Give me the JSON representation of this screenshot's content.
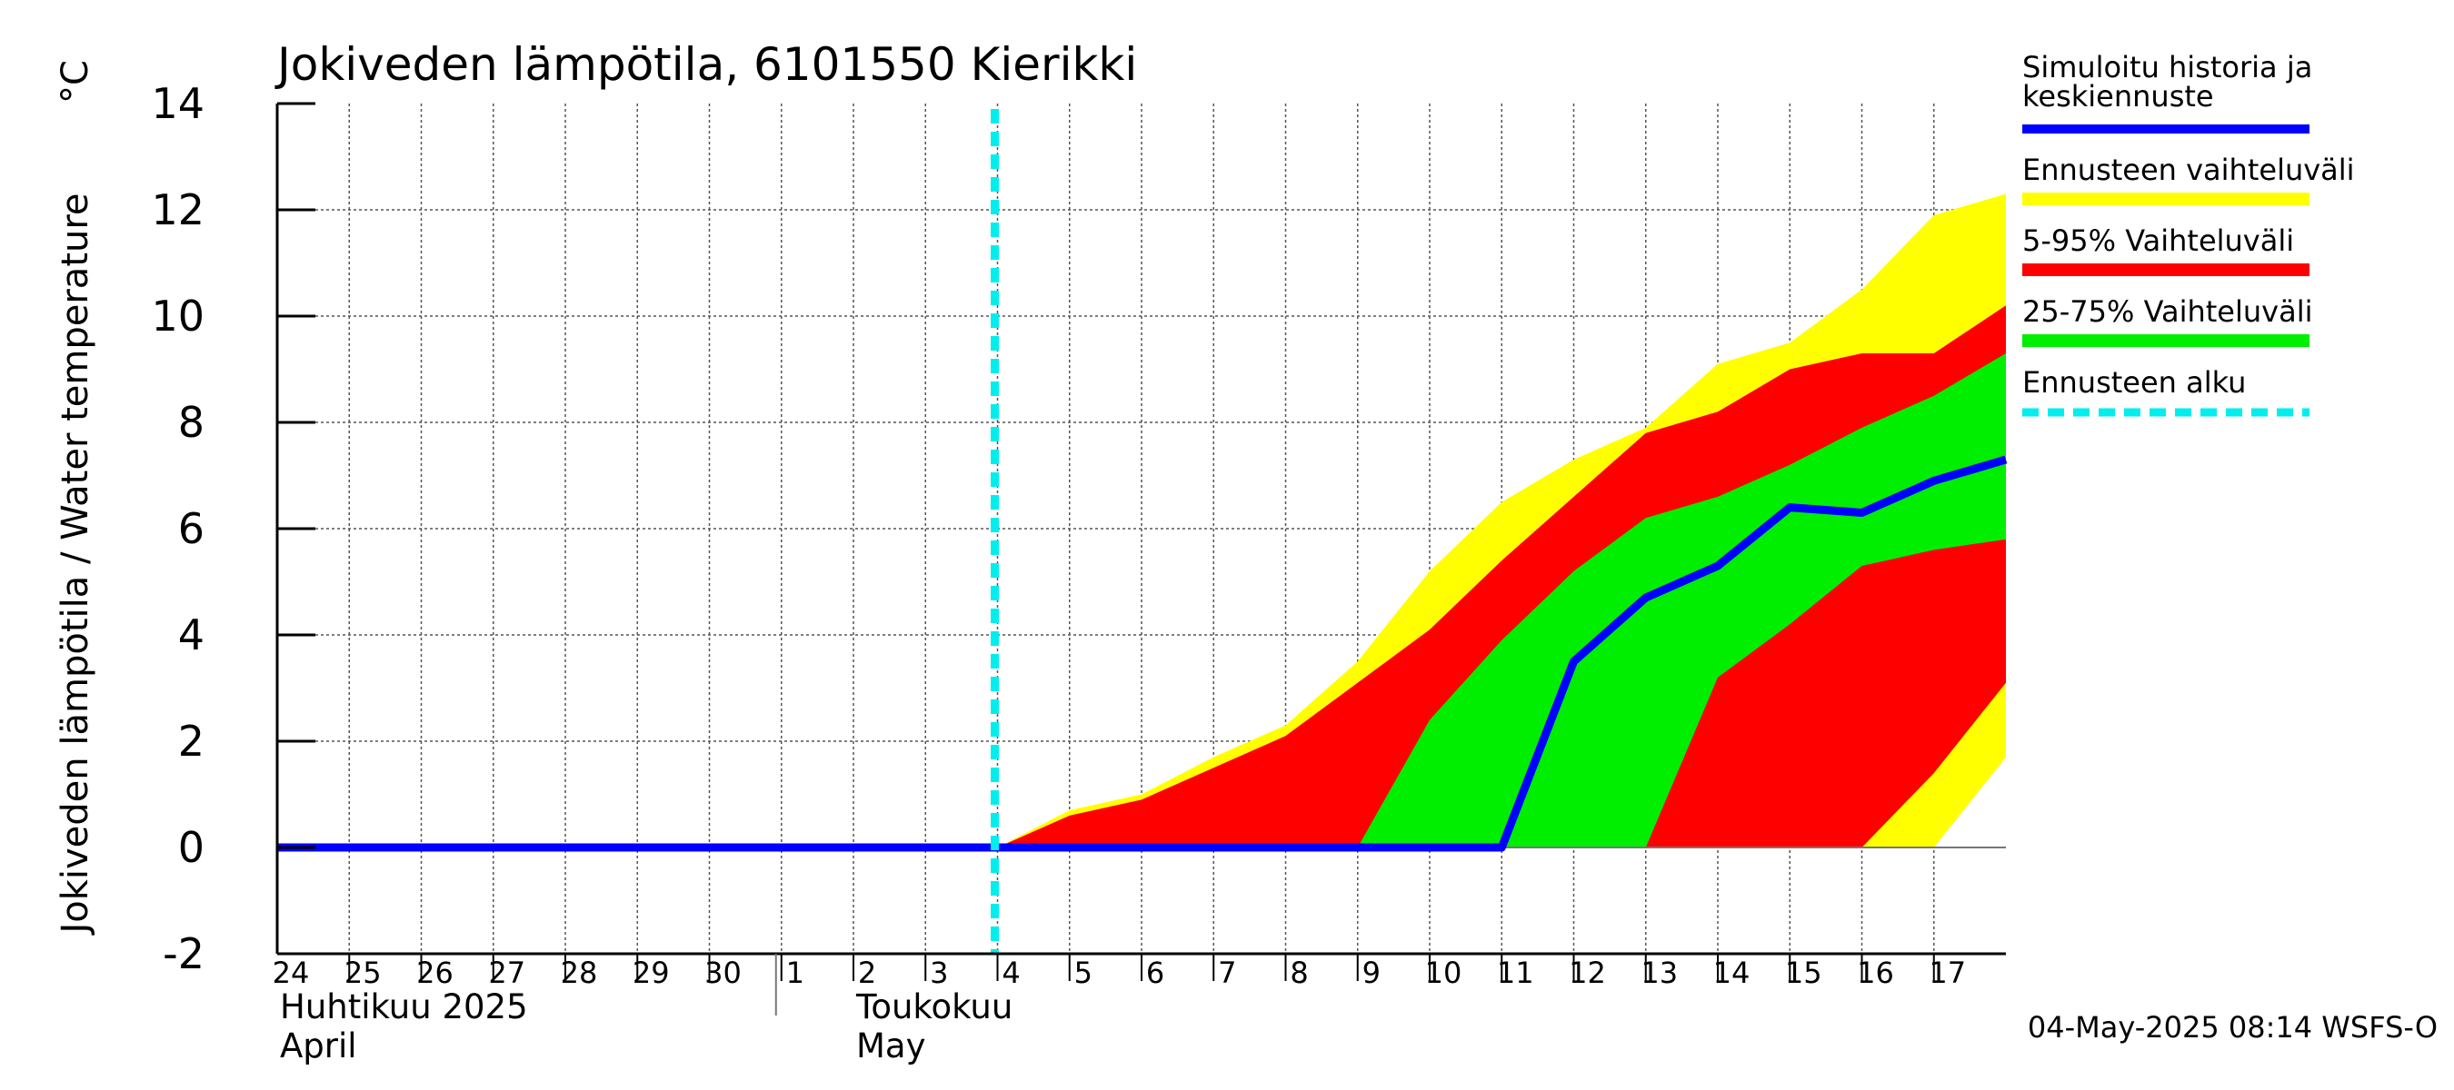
{
  "chart_data": {
    "type": "area",
    "title": "Jokiveden lämpötila, 6101550 Kierikki",
    "ylabel": "Jokiveden lämpötila / Water temperature",
    "yunit": "°C",
    "ylim": [
      -2,
      14
    ],
    "yticks": [
      -2,
      0,
      2,
      4,
      6,
      8,
      10,
      12,
      14
    ],
    "xlim": [
      0,
      24
    ],
    "x_ticks": [
      {
        "x": 0,
        "label": "24"
      },
      {
        "x": 1,
        "label": "25"
      },
      {
        "x": 2,
        "label": "26"
      },
      {
        "x": 3,
        "label": "27"
      },
      {
        "x": 4,
        "label": "28"
      },
      {
        "x": 5,
        "label": "29"
      },
      {
        "x": 6,
        "label": "30"
      },
      {
        "x": 7,
        "label": "1"
      },
      {
        "x": 8,
        "label": "2"
      },
      {
        "x": 9,
        "label": "3"
      },
      {
        "x": 10,
        "label": "4"
      },
      {
        "x": 11,
        "label": "5"
      },
      {
        "x": 12,
        "label": "6"
      },
      {
        "x": 13,
        "label": "7"
      },
      {
        "x": 14,
        "label": "8"
      },
      {
        "x": 15,
        "label": "9"
      },
      {
        "x": 16,
        "label": "10"
      },
      {
        "x": 17,
        "label": "11"
      },
      {
        "x": 18,
        "label": "12"
      },
      {
        "x": 19,
        "label": "13"
      },
      {
        "x": 20,
        "label": "14"
      },
      {
        "x": 21,
        "label": "15"
      },
      {
        "x": 22,
        "label": "16"
      },
      {
        "x": 23,
        "label": "17"
      }
    ],
    "month_labels": [
      {
        "x": 0,
        "line1": "Huhtikuu  2025",
        "line2": "April"
      },
      {
        "x": 8,
        "line1": "Toukokuu",
        "line2": "May"
      }
    ],
    "month_divider_x": 7,
    "forecast_start_x": 10,
    "series": [
      {
        "name": "Ennusteen vaihteluväli",
        "color": "#ffff00",
        "upper": [
          [
            10,
            0
          ],
          [
            11,
            0.7
          ],
          [
            12,
            1.0
          ],
          [
            13,
            1.7
          ],
          [
            14,
            2.3
          ],
          [
            15,
            3.5
          ],
          [
            16,
            5.2
          ],
          [
            17,
            6.5
          ],
          [
            18,
            7.3
          ],
          [
            19,
            7.9
          ],
          [
            20,
            9.1
          ],
          [
            21,
            9.5
          ],
          [
            22,
            10.5
          ],
          [
            23,
            11.9
          ],
          [
            24,
            12.3
          ]
        ],
        "lower": [
          [
            10,
            0
          ],
          [
            11,
            0
          ],
          [
            12,
            0
          ],
          [
            13,
            0
          ],
          [
            14,
            0
          ],
          [
            15,
            0
          ],
          [
            16,
            0
          ],
          [
            17,
            0
          ],
          [
            18,
            0
          ],
          [
            19,
            0
          ],
          [
            20,
            0
          ],
          [
            21,
            0
          ],
          [
            22,
            0
          ],
          [
            23,
            0
          ],
          [
            24,
            1.7
          ]
        ]
      },
      {
        "name": "5-95% Vaihteluväli",
        "color": "#ff0000",
        "upper": [
          [
            10,
            0
          ],
          [
            11,
            0.6
          ],
          [
            12,
            0.9
          ],
          [
            13,
            1.5
          ],
          [
            14,
            2.1
          ],
          [
            15,
            3.1
          ],
          [
            16,
            4.1
          ],
          [
            17,
            5.4
          ],
          [
            18,
            6.6
          ],
          [
            19,
            7.8
          ],
          [
            20,
            8.2
          ],
          [
            21,
            9.0
          ],
          [
            22,
            9.3
          ],
          [
            23,
            9.3
          ],
          [
            24,
            10.2
          ]
        ],
        "lower": [
          [
            10,
            0
          ],
          [
            11,
            0
          ],
          [
            12,
            0
          ],
          [
            13,
            0
          ],
          [
            14,
            0
          ],
          [
            15,
            0
          ],
          [
            16,
            0
          ],
          [
            17,
            0
          ],
          [
            18,
            0
          ],
          [
            19,
            0
          ],
          [
            20,
            0
          ],
          [
            21,
            0
          ],
          [
            22,
            0
          ],
          [
            23,
            1.4
          ],
          [
            24,
            3.1
          ]
        ]
      },
      {
        "name": "25-75% Vaihteluväli",
        "color": "#00ee00",
        "upper": [
          [
            15,
            0
          ],
          [
            16,
            2.4
          ],
          [
            17,
            3.9
          ],
          [
            18,
            5.2
          ],
          [
            19,
            6.2
          ],
          [
            20,
            6.6
          ],
          [
            21,
            7.2
          ],
          [
            22,
            7.9
          ],
          [
            23,
            8.5
          ],
          [
            24,
            9.3
          ]
        ],
        "lower": [
          [
            15,
            0
          ],
          [
            16,
            0
          ],
          [
            17,
            0
          ],
          [
            18,
            0
          ],
          [
            19,
            0
          ],
          [
            20,
            3.2
          ],
          [
            21,
            4.2
          ],
          [
            22,
            5.3
          ],
          [
            23,
            5.6
          ],
          [
            24,
            5.8
          ]
        ]
      },
      {
        "name": "Simuloitu historia ja keskiennuste",
        "color": "#0000ff",
        "values": [
          [
            0,
            0
          ],
          [
            1,
            0
          ],
          [
            2,
            0
          ],
          [
            3,
            0
          ],
          [
            4,
            0
          ],
          [
            5,
            0
          ],
          [
            6,
            0
          ],
          [
            7,
            0
          ],
          [
            8,
            0
          ],
          [
            9,
            0
          ],
          [
            10,
            0
          ],
          [
            11,
            0
          ],
          [
            12,
            0
          ],
          [
            13,
            0
          ],
          [
            14,
            0
          ],
          [
            15,
            0
          ],
          [
            16,
            0
          ],
          [
            17,
            0
          ],
          [
            18,
            3.5
          ],
          [
            19,
            4.7
          ],
          [
            20,
            5.3
          ],
          [
            21,
            6.4
          ],
          [
            22,
            6.3
          ],
          [
            23,
            6.9
          ],
          [
            24,
            7.3
          ]
        ]
      }
    ],
    "legend": [
      {
        "label": "Simuloitu historia ja keskiennuste",
        "line1": "Simuloitu historia ja",
        "line2": "keskiennuste",
        "color": "#0000ff",
        "style": "solid"
      },
      {
        "label": "Ennusteen vaihteluväli",
        "color": "#ffff00",
        "style": "solid"
      },
      {
        "label": "5-95% Vaihteluväli",
        "color": "#ff0000",
        "style": "solid"
      },
      {
        "label": "25-75% Vaihteluväli",
        "color": "#00ee00",
        "style": "solid"
      },
      {
        "label": "Ennusteen alku",
        "color": "#00eeee",
        "style": "dashed"
      }
    ],
    "timestamp": "04-May-2025 08:14 WSFS-O"
  }
}
